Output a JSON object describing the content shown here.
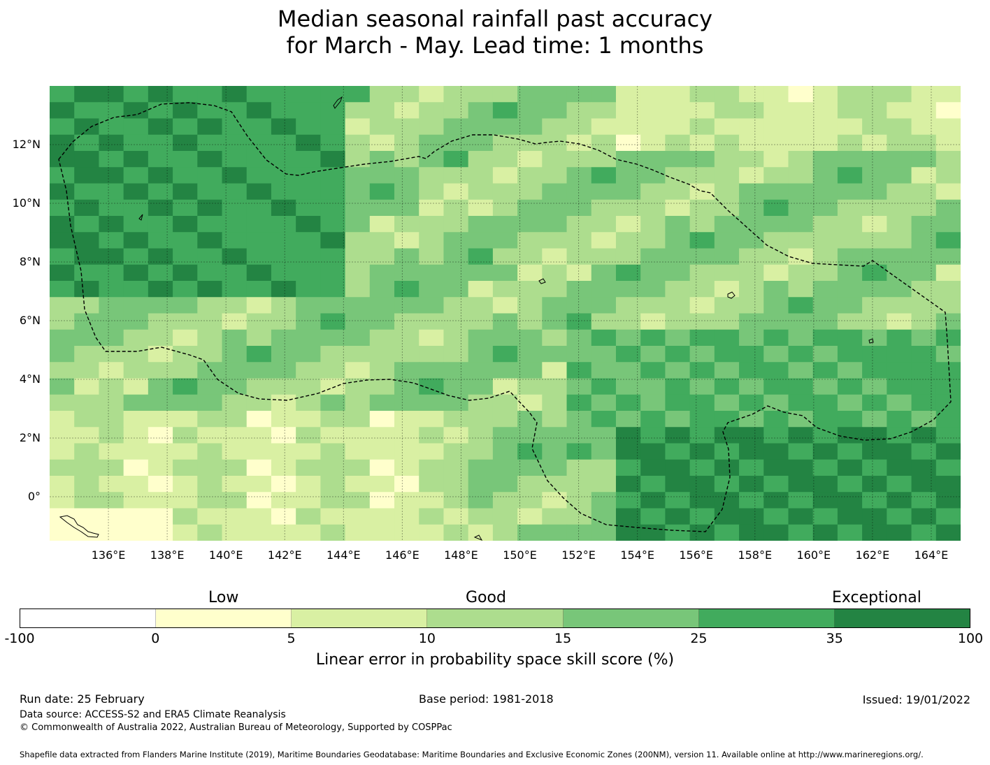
{
  "title": {
    "line1": "Median seasonal rainfall past accuracy",
    "line2": "for March - May. Lead time: 1 months"
  },
  "map": {
    "lat_labels": [
      "12°N",
      "10°N",
      "8°N",
      "6°N",
      "4°N",
      "2°N",
      "0°"
    ],
    "lon_labels": [
      "136°E",
      "138°E",
      "140°E",
      "142°E",
      "144°E",
      "146°E",
      "148°E",
      "150°E",
      "152°E",
      "154°E",
      "156°E",
      "158°E",
      "160°E",
      "162°E",
      "164°E"
    ],
    "extent": {
      "lon_min": 134.0,
      "lon_max": 165.0,
      "lat_min": -1.5,
      "lat_max": 14.0
    },
    "boundary_name": "Federated States of Micronesia EEZ"
  },
  "colorbar": {
    "qualitative": {
      "low": "Low",
      "good": "Good",
      "exceptional": "Exceptional"
    },
    "ticks": [
      "-100",
      "0",
      "5",
      "10",
      "15",
      "25",
      "35",
      "100"
    ],
    "colors": [
      "#ffffff",
      "#ffffcc",
      "#d9f0a3",
      "#addd8e",
      "#78c679",
      "#41ab5d",
      "#238443"
    ],
    "label": "Linear error in probability space skill score (%)"
  },
  "footer": {
    "run_date": "Run date: 25 February",
    "base_period": "Base period: 1981-2018",
    "issued": "Issued: 19/01/2022",
    "data_source": "Data source: ACCESS-S2 and ERA5 Climate Reanalysis",
    "copyright": "© Commonwealth of Australia 2022, Australian Bureau of Meteorology, Supported by COSPPac",
    "shapefile": "Shapefile data extracted from Flanders Marine Institute (2019), Maritime Boundaries Geodatabase: Maritime Boundaries and Exclusive Economic Zones (200NM), version 11. Available online at http://www.marineregions.org/."
  }
}
